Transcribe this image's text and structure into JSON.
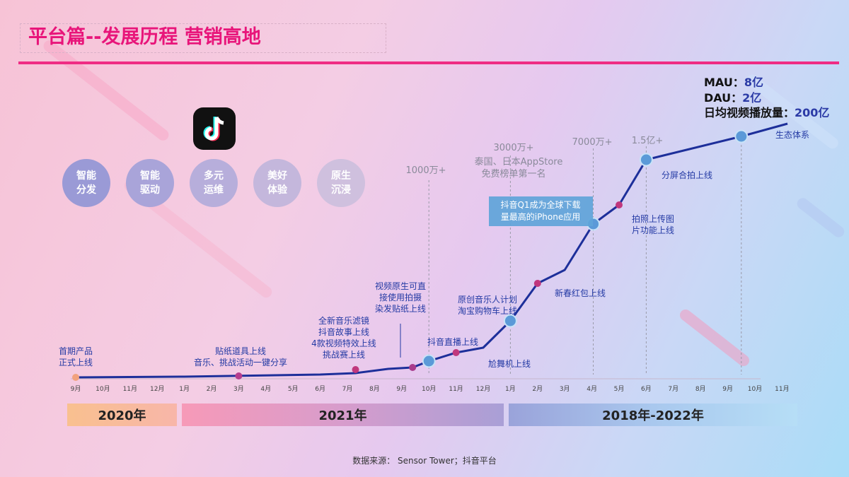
{
  "slide": {
    "title": "平台篇--发展历程 营销高地",
    "source": "数据来源： Sensor Tower；抖音平台"
  },
  "circles": [
    {
      "line1": "智能",
      "line2": "分发"
    },
    {
      "line1": "智能",
      "line2": "驱动"
    },
    {
      "line1": "多元",
      "line2": "运维"
    },
    {
      "line1": "美好",
      "line2": "体验"
    },
    {
      "line1": "原生",
      "line2": "沉浸"
    }
  ],
  "metrics": [
    {
      "label": "MAU：",
      "value": "8亿"
    },
    {
      "label": "DAU：",
      "value": "2亿"
    },
    {
      "label": "日均视频播放量：",
      "value": "200亿"
    }
  ],
  "bands": [
    "2020年",
    "2021年",
    "2018年-2022年"
  ],
  "colors": {
    "accent": "#ef2c84",
    "line": "#1d2f9a",
    "label": "#243aa4",
    "gray": "#8a8a9a"
  },
  "chart_data": {
    "type": "line",
    "x": [
      "9月",
      "10月",
      "11月",
      "12月",
      "1月",
      "2月",
      "3月",
      "4月",
      "5月",
      "6月",
      "7月",
      "8月",
      "9月",
      "10月",
      "11月",
      "12月",
      "1月",
      "2月",
      "3月",
      "4月",
      "5月",
      "6月",
      "7月",
      "8月",
      "9月",
      "10月",
      "11月"
    ],
    "milestone_values": [
      "1000万+",
      "3000万+",
      "7000万+",
      "1.5亿+"
    ],
    "milestone_notes": [
      "泰国、日本AppStore",
      "免费榜单第一名"
    ],
    "callout": [
      "抖音Q1成为全球下载",
      "量最高的iPhone应用"
    ],
    "events": [
      {
        "lines": [
          "首期产品",
          "正式上线"
        ]
      },
      {
        "lines": [
          "贴纸道具上线",
          "音乐、挑战活动一键分享"
        ]
      },
      {
        "lines": [
          "全新音乐滤镜",
          "抖音故事上线",
          "4款视频特效上线",
          "挑战赛上线"
        ]
      },
      {
        "lines": [
          "视频原生可直",
          "接使用拍摄",
          "染发贴纸上线"
        ]
      },
      {
        "lines": [
          "抖音直播上线"
        ]
      },
      {
        "lines": [
          "尬舞机上线"
        ]
      },
      {
        "lines": [
          "原创音乐人计划",
          "淘宝购物车上线"
        ]
      },
      {
        "lines": [
          "新春红包上线"
        ]
      },
      {
        "lines": [
          "拍照上传图",
          "片功能上线"
        ]
      },
      {
        "lines": [
          "分屏合拍上线"
        ]
      },
      {
        "lines": [
          "生态体系"
        ]
      }
    ]
  }
}
